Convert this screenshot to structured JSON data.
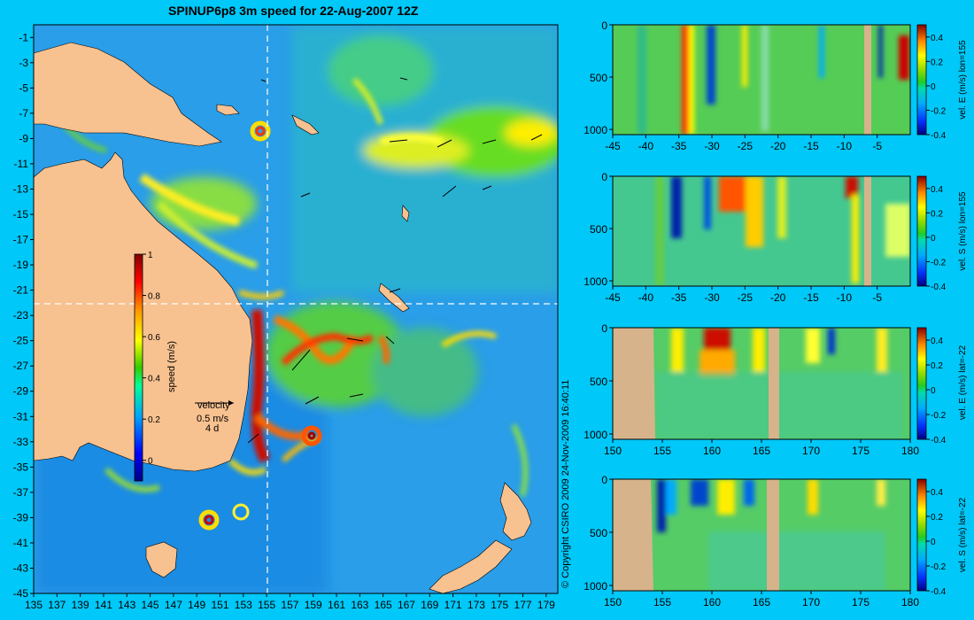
{
  "title": "SPINUP6p8 3m speed for 22-Aug-2007 12Z",
  "copyright": "© Copyright CSIRO 2009   24-Nov-2009 16:40:11",
  "colors": {
    "background": "#00c8f8",
    "land": "#f7c190",
    "section_land": "#d6b38b"
  },
  "chart_data": [
    {
      "type": "heatmap",
      "title": "SPINUP6p8 3m speed for 22-Aug-2007 12Z",
      "x_ticks": [
        135,
        137,
        139,
        141,
        143,
        145,
        147,
        149,
        151,
        153,
        155,
        157,
        159,
        161,
        163,
        165,
        167,
        169,
        171,
        173,
        175,
        177,
        179
      ],
      "y_ticks": [
        -1,
        -3,
        -5,
        -7,
        -9,
        -11,
        -13,
        -15,
        -17,
        -19,
        -21,
        -23,
        -25,
        -27,
        -29,
        -31,
        -33,
        -35,
        -37,
        -39,
        -41,
        -43,
        -45
      ],
      "xlim": [
        135,
        180
      ],
      "ylim": [
        -45,
        0
      ],
      "colorbar": {
        "label": "speed (m/s)",
        "ticks": [
          0,
          0.2,
          0.4,
          0.6,
          0.8,
          1
        ],
        "range": [
          -0.1,
          1
        ]
      },
      "reference_vector": {
        "label": "velocity",
        "value": "0.5 m/s",
        "duration": "4 d"
      },
      "guide_lines": {
        "lon": 155,
        "lat": -22
      },
      "grid": false
    },
    {
      "type": "heatmap",
      "xlabel": "",
      "ylabel": "",
      "x_ticks": [
        -45,
        -40,
        -35,
        -30,
        -25,
        -20,
        -15,
        -10,
        -5
      ],
      "y_ticks": [
        0,
        500,
        1000
      ],
      "xlim": [
        -45,
        0
      ],
      "ylim": [
        0,
        1050
      ],
      "colorbar": {
        "label": "vel. E (m/s) lon=155",
        "ticks": [
          0.4,
          0.2,
          0,
          -0.2,
          -0.4
        ],
        "range": [
          -0.4,
          0.5
        ]
      },
      "land_x": [
        [
          -6.8,
          -5.4
        ]
      ]
    },
    {
      "type": "heatmap",
      "xlabel": "",
      "ylabel": "",
      "x_ticks": [
        -45,
        -40,
        -35,
        -30,
        -25,
        -20,
        -15,
        -10,
        -5
      ],
      "y_ticks": [
        0,
        500,
        1000
      ],
      "xlim": [
        -45,
        0
      ],
      "ylim": [
        0,
        1050
      ],
      "colorbar": {
        "label": "vel. S (m/s) lon=155",
        "ticks": [
          0.4,
          0.2,
          0,
          -0.2,
          -0.4
        ],
        "range": [
          -0.4,
          0.5
        ]
      },
      "land_x": [
        [
          -6.8,
          -5.4
        ]
      ]
    },
    {
      "type": "heatmap",
      "xlabel": "",
      "ylabel": "",
      "x_ticks": [
        150,
        155,
        160,
        165,
        170,
        175,
        180
      ],
      "y_ticks": [
        0,
        500,
        1000
      ],
      "xlim": [
        150,
        180
      ],
      "ylim": [
        0,
        1050
      ],
      "colorbar": {
        "label": "vel. E (m/s) lat=-22",
        "ticks": [
          0.4,
          0.2,
          0,
          -0.2,
          -0.4
        ],
        "range": [
          -0.4,
          0.5
        ]
      },
      "land_x": [
        [
          150,
          154.2
        ],
        [
          166.4,
          167.2
        ]
      ]
    },
    {
      "type": "heatmap",
      "xlabel": "",
      "ylabel": "",
      "x_ticks": [
        150,
        155,
        160,
        165,
        170,
        175,
        180
      ],
      "y_ticks": [
        0,
        500,
        1000
      ],
      "xlim": [
        150,
        180
      ],
      "ylim": [
        0,
        1050
      ],
      "colorbar": {
        "label": "vel. S (m/s) lat=-22",
        "ticks": [
          0.4,
          0.2,
          0,
          -0.2,
          -0.4
        ],
        "range": [
          -0.4,
          0.5
        ]
      },
      "land_x": [
        [
          150,
          154.2
        ],
        [
          166.2,
          167.2
        ]
      ]
    }
  ]
}
